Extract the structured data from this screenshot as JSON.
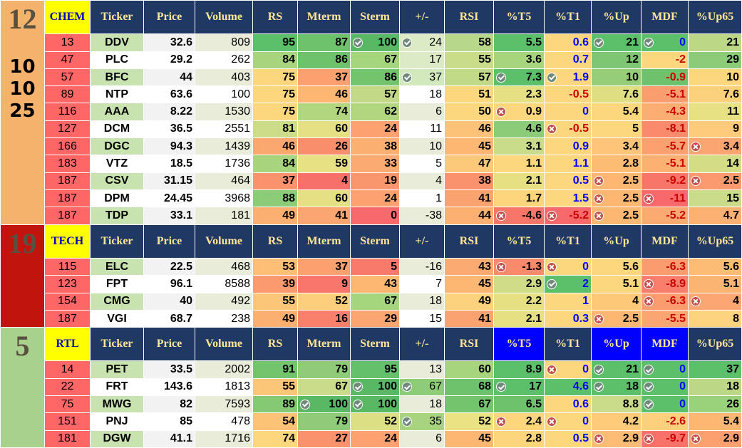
{
  "headers": [
    "Ticker",
    "Price",
    "Volume",
    "RS",
    "Mterm",
    "Sterm",
    "+/-",
    "RSI",
    "%T5",
    "%T1",
    "%Up",
    "MDF",
    "%Up65"
  ],
  "colors": {
    "header_bg": "#1f3864",
    "header_text": "#ffe699",
    "header_highlight": "#0000ff",
    "group_label_bg": "#ffff00",
    "group_label_text": "#0000c0"
  },
  "groups": [
    {
      "label": "CHEM",
      "side_lines": [
        "12",
        "10",
        "10",
        "25"
      ],
      "side_color": "#f4b26c",
      "highlight_cols": [],
      "rows": [
        {
          "rank": "13",
          "ticker": "DDV",
          "price": "32.6",
          "volume": "809",
          "rs": "95",
          "mterm": "87",
          "sterm": "100",
          "pm": "24",
          "rsi": "58",
          "t5": "5.5",
          "t1": "0.6",
          "up": "21",
          "mdf": "0",
          "up65": "21",
          "bg": [
            "#ff6666",
            "#c9e3b0",
            "#f2f2f2",
            "#e8ecd8",
            "#5cbf6a",
            "#6ec26c",
            "#58b863",
            "#dcebc5",
            "#b7d88a",
            "#5cbf6a",
            "#fdd77e",
            "#5cbf6a",
            "#5cbf6a",
            "#bcd887"
          ],
          "icons": {
            "sterm": "check",
            "pm": "check",
            "up": "check",
            "mdf": "check"
          },
          "tc": {
            "t1": "blue",
            "mdf": "blue"
          }
        },
        {
          "rank": "47",
          "ticker": "PLC",
          "price": "29.2",
          "volume": "262",
          "rs": "84",
          "mterm": "86",
          "sterm": "67",
          "pm": "17",
          "rsi": "55",
          "t5": "3.6",
          "t1": "0.7",
          "up": "12",
          "mdf": "-2",
          "up65": "29",
          "bg": [
            "#ff6666",
            "#ffffff",
            "#ffffff",
            "#ffffff",
            "#a9d47e",
            "#6ec26c",
            "#a5d57c",
            "#dcebc5",
            "#c9dc89",
            "#a6d57e",
            "#fdd77e",
            "#7ec673",
            "#fdd77e",
            "#8ccb77"
          ],
          "icons": {},
          "tc": {
            "t1": "blue",
            "mdf": "neg"
          }
        },
        {
          "rank": "57",
          "ticker": "BFC",
          "price": "44",
          "volume": "403",
          "rs": "75",
          "mterm": "37",
          "sterm": "86",
          "pm": "37",
          "rsi": "57",
          "t5": "7.3",
          "t1": "1.9",
          "up": "10",
          "mdf": "-0.9",
          "up65": "10",
          "bg": [
            "#ff6666",
            "#c9e3b0",
            "#f2f2f2",
            "#e8ecd8",
            "#fdd77e",
            "#fba06f",
            "#74c46e",
            "#d2e8bd",
            "#c1da88",
            "#5cbf6a",
            "#fdd77e",
            "#95cd79",
            "#6ec26c",
            "#fdd77e"
          ],
          "icons": {
            "pm": "check",
            "t5": "check",
            "t1": "check"
          },
          "tc": {
            "t1": "blue",
            "mdf": "neg"
          }
        },
        {
          "rank": "89",
          "ticker": "NTP",
          "price": "63.6",
          "volume": "100",
          "rs": "75",
          "mterm": "46",
          "sterm": "57",
          "pm": "18",
          "rsi": "51",
          "t5": "2.3",
          "t1": "-0.5",
          "up": "7.6",
          "mdf": "-5.1",
          "up65": "7.6",
          "bg": [
            "#ff6666",
            "#ffffff",
            "#ffffff",
            "#ffffff",
            "#fdd77e",
            "#fcb873",
            "#c3d987",
            "#ffffff",
            "#fdd77e",
            "#e4e083",
            "#fdd77e",
            "#dfde82",
            "#fb9e6f",
            "#fcd17c"
          ],
          "icons": {},
          "tc": {
            "t1": "neg",
            "mdf": "neg"
          }
        },
        {
          "rank": "116",
          "ticker": "AAA",
          "price": "8.22",
          "volume": "1530",
          "rs": "75",
          "mterm": "74",
          "sterm": "62",
          "pm": "6",
          "rsi": "50",
          "t5": "0.9",
          "t1": "0",
          "up": "5.4",
          "mdf": "-4.3",
          "up65": "11",
          "bg": [
            "#ff6666",
            "#c9e3b0",
            "#f2f2f2",
            "#e8ecd8",
            "#fdd77e",
            "#b2d67f",
            "#b2d67f",
            "#e8ecd8",
            "#fdd77e",
            "#fdd77e",
            "#fdd77e",
            "#fdd77e",
            "#fcad72",
            "#e8e183"
          ],
          "icons": {
            "t5": "x"
          },
          "tc": {
            "t1": "blue",
            "mdf": "neg"
          }
        },
        {
          "rank": "127",
          "ticker": "DCM",
          "price": "36.5",
          "volume": "2551",
          "rs": "81",
          "mterm": "60",
          "sterm": "24",
          "pm": "11",
          "rsi": "46",
          "t5": "4.6",
          "t1": "-0.5",
          "up": "5",
          "mdf": "-8.1",
          "up65": "9",
          "bg": [
            "#ff6666",
            "#ffffff",
            "#ffffff",
            "#ffffff",
            "#ccdc88",
            "#e5e083",
            "#fca170",
            "#ffffff",
            "#fcc378",
            "#8ccb77",
            "#fdd77e",
            "#fdd77e",
            "#f98a6c",
            "#fccb7b"
          ],
          "icons": {
            "t1": "x"
          },
          "tc": {
            "t1": "neg",
            "mdf": "neg"
          }
        },
        {
          "rank": "166",
          "ticker": "DGC",
          "price": "94.3",
          "volume": "1439",
          "rs": "46",
          "mterm": "26",
          "sterm": "38",
          "pm": "10",
          "rsi": "45",
          "t5": "3.1",
          "t1": "0.9",
          "up": "3.4",
          "mdf": "-5.7",
          "up65": "3.4",
          "bg": [
            "#ff6666",
            "#c9e3b0",
            "#f2f2f2",
            "#e8ecd8",
            "#fba870",
            "#f98e6c",
            "#fbb071",
            "#e8ecd8",
            "#fcb873",
            "#c9dc89",
            "#fdd77e",
            "#fdc47a",
            "#fba06f",
            "#fba571"
          ],
          "icons": {
            "up65": "x"
          },
          "tc": {
            "t1": "blue",
            "mdf": "neg"
          }
        },
        {
          "rank": "183",
          "ticker": "VTZ",
          "price": "18.5",
          "volume": "1736",
          "rs": "84",
          "mterm": "59",
          "sterm": "33",
          "pm": "5",
          "rsi": "47",
          "t5": "1.1",
          "t1": "1.1",
          "up": "2.8",
          "mdf": "-5.1",
          "up65": "14",
          "bg": [
            "#ff6666",
            "#ffffff",
            "#ffffff",
            "#ffffff",
            "#a9d47e",
            "#e8e183",
            "#fbab71",
            "#ffffff",
            "#fcc87a",
            "#fdd77e",
            "#fdd77e",
            "#fcbc74",
            "#fcb071",
            "#d4dd86"
          ],
          "icons": {},
          "tc": {
            "t1": "blue",
            "mdf": "neg"
          }
        },
        {
          "rank": "187",
          "ticker": "CSV",
          "price": "31.15",
          "volume": "464",
          "rs": "37",
          "mterm": "4",
          "sterm": "19",
          "pm": "4",
          "rsi": "38",
          "t5": "2.1",
          "t1": "0.5",
          "up": "2.5",
          "mdf": "-9.2",
          "up65": "2.5",
          "bg": [
            "#ff6666",
            "#c9e3b0",
            "#f2f2f2",
            "#e8ecd8",
            "#fa936d",
            "#f8706a",
            "#fa966e",
            "#e8ecd8",
            "#fa936d",
            "#e7e083",
            "#fdd77e",
            "#fcb873",
            "#f8756a",
            "#fa9a6e"
          ],
          "icons": {
            "up": "x",
            "up65": "x"
          },
          "tc": {
            "t1": "blue",
            "mdf": "neg"
          }
        },
        {
          "rank": "187",
          "ticker": "DPM",
          "price": "24.45",
          "volume": "3968",
          "rs": "88",
          "mterm": "60",
          "sterm": "24",
          "pm": "1",
          "rsi": "41",
          "t5": "1.7",
          "t1": "1.5",
          "up": "2.5",
          "mdf": "-11",
          "up65": "15",
          "bg": [
            "#ff6666",
            "#ffffff",
            "#ffffff",
            "#ffffff",
            "#8ccb77",
            "#e5e083",
            "#fca170",
            "#ffffff",
            "#fba36f",
            "#fcd57d",
            "#fdd77e",
            "#fcb873",
            "#f8696b",
            "#cadb89"
          ],
          "icons": {
            "up": "x",
            "mdf": "x"
          },
          "tc": {
            "t1": "blue",
            "mdf": "neg"
          }
        },
        {
          "rank": "187",
          "ticker": "TDP",
          "price": "33.1",
          "volume": "181",
          "rs": "49",
          "mterm": "41",
          "sterm": "0",
          "pm": "-38",
          "rsi": "44",
          "t5": "-4.6",
          "t1": "-5.2",
          "up": "2.5",
          "mdf": "-5.2",
          "up65": "4.7",
          "bg": [
            "#ff6666",
            "#c9e3b0",
            "#f2f2f2",
            "#e8ecd8",
            "#fbb071",
            "#fba570",
            "#f8696b",
            "#e8ecd8",
            "#fbb071",
            "#f8756a",
            "#f8696b",
            "#fcb873",
            "#fbab71",
            "#fcb072"
          ],
          "icons": {
            "t5": "x",
            "t1": "x",
            "up": "x"
          },
          "tc": {
            "t1": "neg",
            "mdf": "neg"
          }
        }
      ]
    },
    {
      "label": "TECH",
      "side_lines": [
        "19"
      ],
      "side_color": "#c0140c",
      "highlight_cols": [],
      "rows": [
        {
          "rank": "115",
          "ticker": "ELC",
          "price": "22.5",
          "volume": "468",
          "rs": "53",
          "mterm": "37",
          "sterm": "5",
          "pm": "-16",
          "rsi": "43",
          "t5": "-1.3",
          "t1": "0",
          "up": "5.6",
          "mdf": "-6.3",
          "up65": "5.6",
          "bg": [
            "#ff6666",
            "#c9e3b0",
            "#f2f2f2",
            "#e8ecd8",
            "#fcbf75",
            "#fba06f",
            "#f87a6b",
            "#e8ecd8",
            "#fbaa71",
            "#f98a6c",
            "#fdd77e",
            "#fdd77e",
            "#fa9c6e",
            "#fcbc75"
          ],
          "icons": {
            "t5": "x",
            "t1": "x"
          },
          "tc": {
            "t1": "blue",
            "mdf": "neg"
          }
        },
        {
          "rank": "123",
          "ticker": "FPT",
          "price": "96.1",
          "volume": "8588",
          "rs": "39",
          "mterm": "9",
          "sterm": "43",
          "pm": "7",
          "rsi": "45",
          "t5": "2.9",
          "t1": "2",
          "up": "5.1",
          "mdf": "-8.9",
          "up65": "5.1",
          "bg": [
            "#ff6666",
            "#ffffff",
            "#ffffff",
            "#ffffff",
            "#fa9a6e",
            "#f8766b",
            "#fcb773",
            "#ffffff",
            "#fcb873",
            "#d1dd86",
            "#5cbf6a",
            "#fdd77e",
            "#f97e6c",
            "#fcb473"
          ],
          "icons": {
            "t1": "check",
            "mdf": "x"
          },
          "tc": {
            "t1": "blue",
            "mdf": "neg"
          }
        },
        {
          "rank": "154",
          "ticker": "CMG",
          "price": "40",
          "volume": "492",
          "rs": "55",
          "mterm": "52",
          "sterm": "67",
          "pm": "18",
          "rsi": "49",
          "t5": "2.2",
          "t1": "1",
          "up": "4",
          "mdf": "-6.3",
          "up65": "4",
          "bg": [
            "#ff6666",
            "#c9e3b0",
            "#f2f2f2",
            "#e8ecd8",
            "#fcc678",
            "#fdce7b",
            "#a5d57c",
            "#e8ecd8",
            "#fdd27c",
            "#e6e083",
            "#fdd77e",
            "#fdc979",
            "#fa9c6e",
            "#fca771"
          ],
          "icons": {
            "mdf": "x",
            "up65": "x"
          },
          "tc": {
            "t1": "blue",
            "mdf": "neg"
          }
        },
        {
          "rank": "187",
          "ticker": "VGI",
          "price": "68.7",
          "volume": "238",
          "rs": "49",
          "mterm": "16",
          "sterm": "29",
          "pm": "15",
          "rsi": "41",
          "t5": "2.1",
          "t1": "0.3",
          "up": "2.5",
          "mdf": "-5.5",
          "up65": "8",
          "bg": [
            "#ff6666",
            "#ffffff",
            "#ffffff",
            "#ffffff",
            "#fbb071",
            "#f9816c",
            "#fba570",
            "#ffffff",
            "#fba36f",
            "#e7e083",
            "#fdd77e",
            "#fcb873",
            "#fba671",
            "#fdd47d"
          ],
          "icons": {
            "up": "x"
          },
          "tc": {
            "t1": "blue",
            "mdf": "neg"
          }
        }
      ]
    },
    {
      "label": "RTL",
      "side_lines": [
        "5"
      ],
      "side_color": "#a9d18e",
      "highlight_cols": [
        "t5",
        "up",
        "mdf"
      ],
      "rows": [
        {
          "rank": "14",
          "ticker": "PET",
          "price": "33.5",
          "volume": "2002",
          "rs": "91",
          "mterm": "79",
          "sterm": "95",
          "pm": "13",
          "rsi": "60",
          "t5": "8.9",
          "t1": "0",
          "up": "21",
          "mdf": "0",
          "up65": "37",
          "bg": [
            "#ff6666",
            "#c9e3b0",
            "#f2f2f2",
            "#e8ecd8",
            "#74c46e",
            "#90cc78",
            "#64c06b",
            "#e8ecd8",
            "#a6d57e",
            "#5cbf6a",
            "#fdd77e",
            "#5cbf6a",
            "#5cbf6a",
            "#5cbf6a"
          ],
          "icons": {
            "t1": "x",
            "up": "check",
            "mdf": "check"
          },
          "tc": {
            "t1": "blue",
            "mdf": "blue"
          }
        },
        {
          "rank": "22",
          "ticker": "FRT",
          "price": "143.6",
          "volume": "1813",
          "rs": "55",
          "mterm": "67",
          "sterm": "100",
          "pm": "67",
          "rsi": "68",
          "t5": "17",
          "t1": "4.6",
          "up": "18",
          "mdf": "0",
          "up65": "18",
          "bg": [
            "#ff6666",
            "#ffffff",
            "#ffffff",
            "#ffffff",
            "#fcc678",
            "#cadb89",
            "#58b863",
            "#8fcc77",
            "#6ec26c",
            "#5cbf6a",
            "#5cbf6a",
            "#5cbf6a",
            "#5cbf6a",
            "#bcd887"
          ],
          "icons": {
            "sterm": "check",
            "pm": "check",
            "t5": "check",
            "up": "check",
            "mdf": "check"
          },
          "tc": {
            "t1": "blue",
            "mdf": "blue"
          }
        },
        {
          "rank": "75",
          "ticker": "MWG",
          "price": "82",
          "volume": "7593",
          "rs": "89",
          "mterm": "100",
          "sterm": "100",
          "pm": "18",
          "rsi": "67",
          "t5": "6.5",
          "t1": "0.6",
          "up": "8.8",
          "mdf": "0",
          "up65": "26",
          "bg": [
            "#ff6666",
            "#c9e3b0",
            "#f2f2f2",
            "#e8ecd8",
            "#85c975",
            "#58b863",
            "#58b863",
            "#e8ecd8",
            "#74c46e",
            "#6ec26c",
            "#fdd77e",
            "#cadb89",
            "#5cbf6a",
            "#9ad17b"
          ],
          "icons": {
            "mterm": "check",
            "sterm": "check",
            "mdf": "check"
          },
          "tc": {
            "t1": "blue",
            "mdf": "blue"
          }
        },
        {
          "rank": "151",
          "ticker": "PNJ",
          "price": "85",
          "volume": "478",
          "rs": "54",
          "mterm": "79",
          "sterm": "52",
          "pm": "35",
          "rsi": "52",
          "t5": "2.4",
          "t1": "0",
          "up": "4.2",
          "mdf": "-2.6",
          "up65": "5.4",
          "bg": [
            "#ff6666",
            "#ffffff",
            "#ffffff",
            "#ffffff",
            "#fcc275",
            "#90cc78",
            "#dcdf84",
            "#a8d47f",
            "#eae283",
            "#fcd57d",
            "#fdd77e",
            "#fdcb7a",
            "#fdd07c",
            "#fcb873"
          ],
          "icons": {
            "pm": "check",
            "t5": "x",
            "t1": "x"
          },
          "tc": {
            "t1": "blue",
            "mdf": "neg"
          }
        },
        {
          "rank": "181",
          "ticker": "DGW",
          "price": "41.1",
          "volume": "1716",
          "rs": "74",
          "mterm": "27",
          "sterm": "24",
          "pm": "6",
          "rsi": "45",
          "t5": "2.8",
          "t1": "0.5",
          "up": "2.9",
          "mdf": "-9.7",
          "up65": "2.9",
          "bg": [
            "#ff6666",
            "#c9e3b0",
            "#f2f2f2",
            "#e8ecd8",
            "#fdd77e",
            "#fa926d",
            "#fca170",
            "#e8ecd8",
            "#fcb873",
            "#fcd57d",
            "#fdd77e",
            "#fcbc75",
            "#f8726a",
            "#fca070"
          ],
          "icons": {
            "up": "x",
            "mdf": "x",
            "up65": "x"
          },
          "tc": {
            "t1": "blue",
            "mdf": "neg"
          }
        }
      ]
    }
  ]
}
